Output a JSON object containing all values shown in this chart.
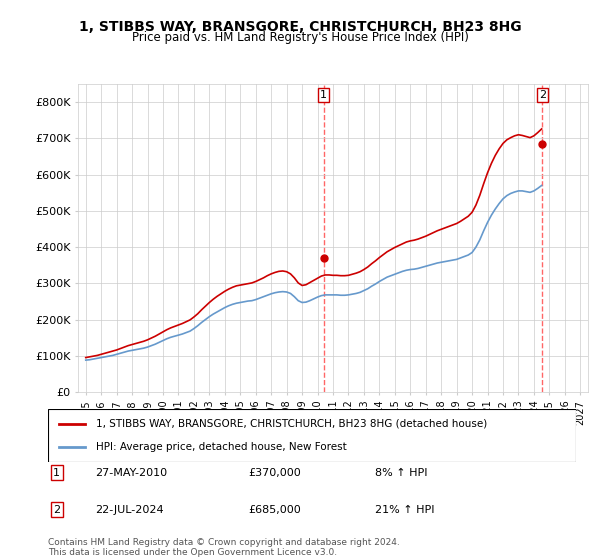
{
  "title": "1, STIBBS WAY, BRANSGORE, CHRISTCHURCH, BH23 8HG",
  "subtitle": "Price paid vs. HM Land Registry's House Price Index (HPI)",
  "legend_label_red": "1, STIBBS WAY, BRANSGORE, CHRISTCHURCH, BH23 8HG (detached house)",
  "legend_label_blue": "HPI: Average price, detached house, New Forest",
  "annotation1_label": "1",
  "annotation1_date": "27-MAY-2010",
  "annotation1_price": "£370,000",
  "annotation1_hpi": "8% ↑ HPI",
  "annotation1_year": 2010.4,
  "annotation1_value": 370000,
  "annotation2_label": "2",
  "annotation2_date": "22-JUL-2024",
  "annotation2_price": "£685,000",
  "annotation2_hpi": "21% ↑ HPI",
  "annotation2_year": 2024.55,
  "annotation2_value": 685000,
  "footer": "Contains HM Land Registry data © Crown copyright and database right 2024.\nThis data is licensed under the Open Government Licence v3.0.",
  "ylim": [
    0,
    850000
  ],
  "yticks": [
    0,
    100000,
    200000,
    300000,
    400000,
    500000,
    600000,
    700000,
    800000
  ],
  "ytick_labels": [
    "£0",
    "£100K",
    "£200K",
    "£300K",
    "£400K",
    "£500K",
    "£600K",
    "£700K",
    "£800K"
  ],
  "red_color": "#cc0000",
  "blue_color": "#6699cc",
  "dashed_color": "#ff6666",
  "background_color": "#ffffff",
  "grid_color": "#cccccc",
  "hpi_years": [
    1995,
    1995.25,
    1995.5,
    1995.75,
    1996,
    1996.25,
    1996.5,
    1996.75,
    1997,
    1997.25,
    1997.5,
    1997.75,
    1998,
    1998.25,
    1998.5,
    1998.75,
    1999,
    1999.25,
    1999.5,
    1999.75,
    2000,
    2000.25,
    2000.5,
    2000.75,
    2001,
    2001.25,
    2001.5,
    2001.75,
    2002,
    2002.25,
    2002.5,
    2002.75,
    2003,
    2003.25,
    2003.5,
    2003.75,
    2004,
    2004.25,
    2004.5,
    2004.75,
    2005,
    2005.25,
    2005.5,
    2005.75,
    2006,
    2006.25,
    2006.5,
    2006.75,
    2007,
    2007.25,
    2007.5,
    2007.75,
    2008,
    2008.25,
    2008.5,
    2008.75,
    2009,
    2009.25,
    2009.5,
    2009.75,
    2010,
    2010.25,
    2010.5,
    2010.75,
    2011,
    2011.25,
    2011.5,
    2011.75,
    2012,
    2012.25,
    2012.5,
    2012.75,
    2013,
    2013.25,
    2013.5,
    2013.75,
    2014,
    2014.25,
    2014.5,
    2014.75,
    2015,
    2015.25,
    2015.5,
    2015.75,
    2016,
    2016.25,
    2016.5,
    2016.75,
    2017,
    2017.25,
    2017.5,
    2017.75,
    2018,
    2018.25,
    2018.5,
    2018.75,
    2019,
    2019.25,
    2019.5,
    2019.75,
    2020,
    2020.25,
    2020.5,
    2020.75,
    2021,
    2021.25,
    2021.5,
    2021.75,
    2022,
    2022.25,
    2022.5,
    2022.75,
    2023,
    2023.25,
    2023.5,
    2023.75,
    2024,
    2024.25,
    2024.5
  ],
  "hpi_values": [
    88000,
    89000,
    91000,
    93000,
    95000,
    97000,
    99000,
    101000,
    104000,
    107000,
    110000,
    113000,
    115000,
    117000,
    119000,
    121000,
    124000,
    128000,
    132000,
    137000,
    142000,
    147000,
    151000,
    154000,
    157000,
    160000,
    164000,
    168000,
    175000,
    183000,
    192000,
    200000,
    208000,
    215000,
    221000,
    227000,
    233000,
    238000,
    242000,
    245000,
    247000,
    249000,
    251000,
    252000,
    255000,
    259000,
    263000,
    267000,
    271000,
    274000,
    276000,
    277000,
    276000,
    272000,
    263000,
    252000,
    247000,
    248000,
    252000,
    257000,
    262000,
    266000,
    268000,
    268000,
    268000,
    268000,
    267000,
    267000,
    268000,
    270000,
    272000,
    275000,
    280000,
    285000,
    292000,
    298000,
    305000,
    311000,
    317000,
    321000,
    325000,
    329000,
    333000,
    336000,
    338000,
    339000,
    341000,
    344000,
    347000,
    350000,
    353000,
    356000,
    358000,
    360000,
    362000,
    364000,
    366000,
    370000,
    374000,
    378000,
    385000,
    400000,
    420000,
    445000,
    468000,
    488000,
    505000,
    520000,
    533000,
    542000,
    548000,
    552000,
    555000,
    555000,
    553000,
    551000,
    555000,
    562000,
    570000
  ],
  "red_years": [
    1995,
    1995.25,
    1995.5,
    1995.75,
    1996,
    1996.25,
    1996.5,
    1996.75,
    1997,
    1997.25,
    1997.5,
    1997.75,
    1998,
    1998.25,
    1998.5,
    1998.75,
    1999,
    1999.25,
    1999.5,
    1999.75,
    2000,
    2000.25,
    2000.5,
    2000.75,
    2001,
    2001.25,
    2001.5,
    2001.75,
    2002,
    2002.25,
    2002.5,
    2002.75,
    2003,
    2003.25,
    2003.5,
    2003.75,
    2004,
    2004.25,
    2004.5,
    2004.75,
    2005,
    2005.25,
    2005.5,
    2005.75,
    2006,
    2006.25,
    2006.5,
    2006.75,
    2007,
    2007.25,
    2007.5,
    2007.75,
    2008,
    2008.25,
    2008.5,
    2008.75,
    2009,
    2009.25,
    2009.5,
    2009.75,
    2010,
    2010.25,
    2010.5,
    2010.75,
    2011,
    2011.25,
    2011.5,
    2011.75,
    2012,
    2012.25,
    2012.5,
    2012.75,
    2013,
    2013.25,
    2013.5,
    2013.75,
    2014,
    2014.25,
    2014.5,
    2014.75,
    2015,
    2015.25,
    2015.5,
    2015.75,
    2016,
    2016.25,
    2016.5,
    2016.75,
    2017,
    2017.25,
    2017.5,
    2017.75,
    2018,
    2018.25,
    2018.5,
    2018.75,
    2019,
    2019.25,
    2019.5,
    2019.75,
    2020,
    2020.25,
    2020.5,
    2020.75,
    2021,
    2021.25,
    2021.5,
    2021.75,
    2022,
    2022.25,
    2022.5,
    2022.75,
    2023,
    2023.25,
    2023.5,
    2023.75,
    2024,
    2024.25,
    2024.5
  ],
  "red_values": [
    95000,
    97000,
    99000,
    101000,
    104000,
    107000,
    110000,
    113000,
    116000,
    120000,
    124000,
    128000,
    131000,
    134000,
    137000,
    140000,
    144000,
    149000,
    154000,
    160000,
    166000,
    172000,
    177000,
    181000,
    185000,
    189000,
    194000,
    199000,
    207000,
    216000,
    227000,
    237000,
    247000,
    256000,
    264000,
    271000,
    278000,
    284000,
    289000,
    293000,
    295000,
    297000,
    299000,
    301000,
    305000,
    310000,
    315000,
    321000,
    326000,
    330000,
    333000,
    334000,
    332000,
    326000,
    315000,
    301000,
    294000,
    296000,
    302000,
    308000,
    314000,
    320000,
    323000,
    323000,
    322000,
    322000,
    321000,
    321000,
    322000,
    325000,
    328000,
    332000,
    338000,
    345000,
    354000,
    362000,
    371000,
    379000,
    387000,
    393000,
    399000,
    404000,
    409000,
    414000,
    417000,
    419000,
    422000,
    426000,
    430000,
    435000,
    440000,
    445000,
    449000,
    453000,
    457000,
    461000,
    465000,
    471000,
    478000,
    485000,
    496000,
    516000,
    543000,
    575000,
    605000,
    631000,
    653000,
    671000,
    686000,
    696000,
    702000,
    707000,
    710000,
    708000,
    705000,
    702000,
    707000,
    716000,
    726000
  ],
  "xtick_years": [
    1995,
    1996,
    1997,
    1998,
    1999,
    2000,
    2001,
    2002,
    2003,
    2004,
    2005,
    2006,
    2007,
    2008,
    2009,
    2010,
    2011,
    2012,
    2013,
    2014,
    2015,
    2016,
    2017,
    2018,
    2019,
    2020,
    2021,
    2022,
    2023,
    2024,
    2025,
    2026,
    2027
  ],
  "xlim": [
    1994.5,
    2027.5
  ]
}
